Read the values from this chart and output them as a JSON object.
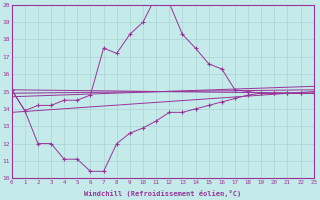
{
  "xlabel": "Windchill (Refroidissement éolien,°C)",
  "bg_color": "#c5eaea",
  "line_color": "#993399",
  "grid_color": "#b0d8d8",
  "xmin": 0,
  "xmax": 23,
  "ymin": 10,
  "ymax": 20,
  "series_upper_x": [
    0,
    1,
    2,
    3,
    4,
    5,
    6,
    7,
    8,
    9,
    10,
    11,
    12,
    13,
    14,
    15,
    16,
    17,
    18,
    19,
    20,
    21,
    22,
    23
  ],
  "series_upper_y": [
    15.1,
    13.9,
    14.2,
    14.2,
    14.5,
    14.5,
    14.8,
    17.5,
    17.2,
    18.3,
    19.0,
    20.5,
    20.1,
    18.3,
    17.5,
    16.6,
    16.3,
    15.1,
    15.0,
    14.9,
    14.9,
    14.9,
    14.9,
    14.9
  ],
  "series_lower_x": [
    0,
    1,
    2,
    3,
    4,
    5,
    6,
    7,
    8,
    9,
    10,
    11,
    12,
    13,
    14,
    15,
    16,
    17,
    18,
    19,
    20,
    21,
    22,
    23
  ],
  "series_lower_y": [
    15.1,
    13.9,
    12.0,
    12.0,
    11.1,
    11.1,
    10.4,
    10.4,
    12.0,
    12.6,
    12.9,
    13.3,
    13.8,
    13.8,
    14.0,
    14.2,
    14.4,
    14.6,
    14.8,
    14.9,
    14.9,
    14.9,
    14.9,
    14.9
  ],
  "trend1_x": [
    0,
    23
  ],
  "trend1_y": [
    15.1,
    14.9
  ],
  "trend2_x": [
    0,
    23
  ],
  "trend2_y": [
    14.9,
    15.1
  ],
  "trend3_x": [
    0,
    23
  ],
  "trend3_y": [
    14.7,
    15.3
  ],
  "trend4_x": [
    0,
    23
  ],
  "trend4_y": [
    13.8,
    15.0
  ]
}
